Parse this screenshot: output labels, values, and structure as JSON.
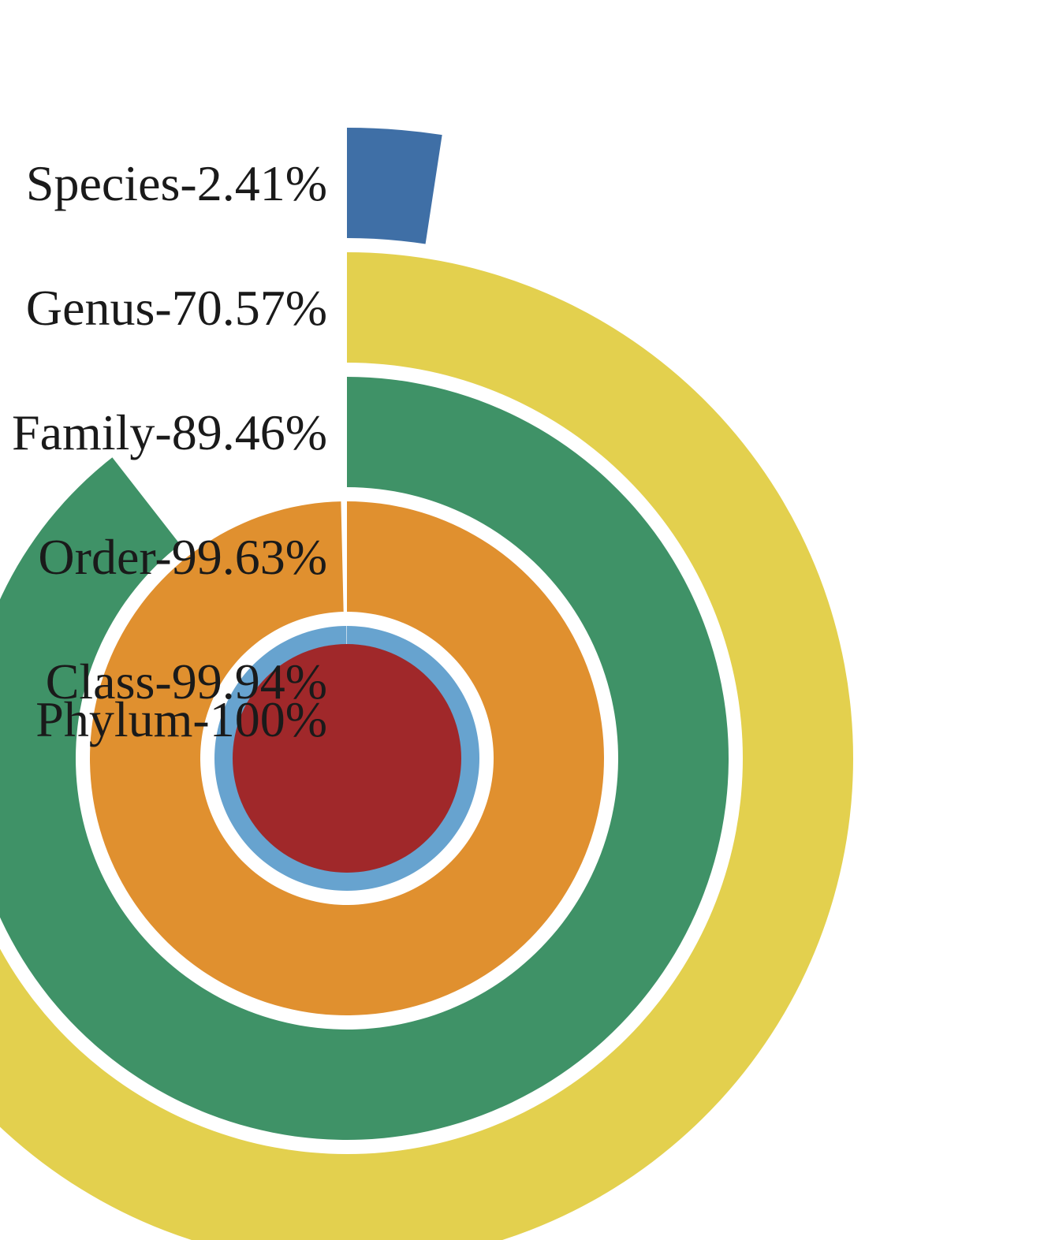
{
  "chart_data": {
    "type": "radial-bar",
    "max": 100,
    "unit": "%",
    "series": [
      {
        "label": "Species-2.41%",
        "category": "Species",
        "value": 2.41,
        "color": "#3f6fa6"
      },
      {
        "label": "Genus-70.57%",
        "category": "Genus",
        "value": 70.57,
        "color": "#e3d04e"
      },
      {
        "label": "Family-89.46%",
        "category": "Family",
        "value": 89.46,
        "color": "#3f9267"
      },
      {
        "label": "Order-99.63%",
        "category": "Order",
        "value": 99.63,
        "color": "#e0902f"
      },
      {
        "label": "Class-99.94%",
        "category": "Class",
        "value": 99.94,
        "color": "#67a3cf"
      },
      {
        "label": "Phylum-100%",
        "category": "Phylum",
        "value": 100,
        "color": "#a0282a"
      }
    ]
  }
}
